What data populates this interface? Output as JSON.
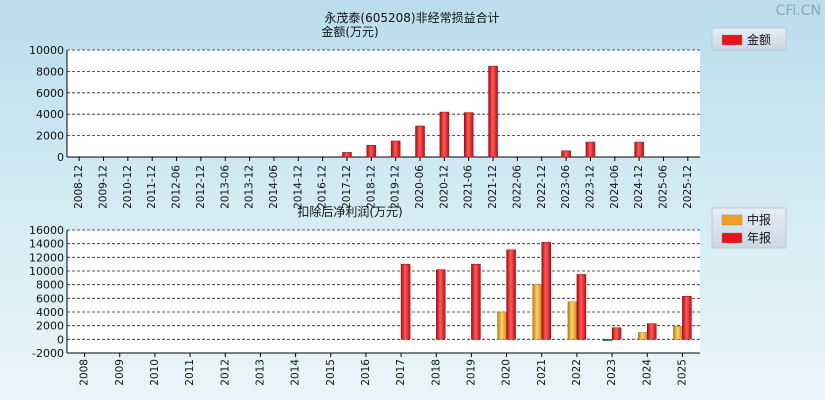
{
  "watermark": "CFi.CN",
  "chart_data": [
    {
      "type": "bar",
      "title": "永茂泰(605208)非经常损益合计",
      "ylabel": "金额(万元)",
      "ylim": [
        0,
        10000
      ],
      "yticks": [
        0,
        2000,
        4000,
        6000,
        8000,
        10000
      ],
      "grid": true,
      "legend_position": "top-right",
      "categories": [
        "2008-12",
        "2009-12",
        "2010-12",
        "2011-12",
        "2012-06",
        "2012-12",
        "2013-06",
        "2013-12",
        "2014-06",
        "2014-12",
        "2016-12",
        "2017-12",
        "2018-12",
        "2019-12",
        "2020-06",
        "2020-12",
        "2021-06",
        "2021-12",
        "2022-06",
        "2022-12",
        "2023-06",
        "2023-12",
        "2024-06",
        "2024-12",
        "2025-06",
        "2025-12"
      ],
      "series": [
        {
          "name": "金额",
          "color": "#e8141a",
          "values": [
            null,
            null,
            null,
            null,
            null,
            null,
            null,
            null,
            null,
            null,
            null,
            430,
            1100,
            1500,
            2900,
            4200,
            4150,
            8500,
            null,
            null,
            580,
            1400,
            null,
            1400,
            null,
            null
          ]
        }
      ]
    },
    {
      "type": "bar",
      "title": "扣除后净利润(万元)",
      "ylim": [
        -2000,
        16000
      ],
      "yticks": [
        -2000,
        0,
        2000,
        4000,
        6000,
        8000,
        10000,
        12000,
        14000,
        16000
      ],
      "grid": true,
      "legend_position": "top-right",
      "categories": [
        "2008",
        "2009",
        "2010",
        "2011",
        "2012",
        "2013",
        "2014",
        "2015",
        "2016",
        "2017",
        "2018",
        "2019",
        "2020",
        "2021",
        "2022",
        "2023",
        "2024",
        "2025"
      ],
      "series": [
        {
          "name": "中报",
          "color": "#f0a020",
          "values": [
            null,
            null,
            null,
            null,
            null,
            null,
            null,
            null,
            null,
            null,
            null,
            null,
            4000,
            8000,
            5500,
            -200,
            1000,
            1900
          ]
        },
        {
          "name": "年报",
          "color": "#e8141a",
          "values": [
            null,
            null,
            null,
            null,
            null,
            null,
            null,
            null,
            null,
            11000,
            10200,
            11000,
            13100,
            14200,
            9500,
            1700,
            2300,
            6300
          ]
        }
      ]
    }
  ]
}
